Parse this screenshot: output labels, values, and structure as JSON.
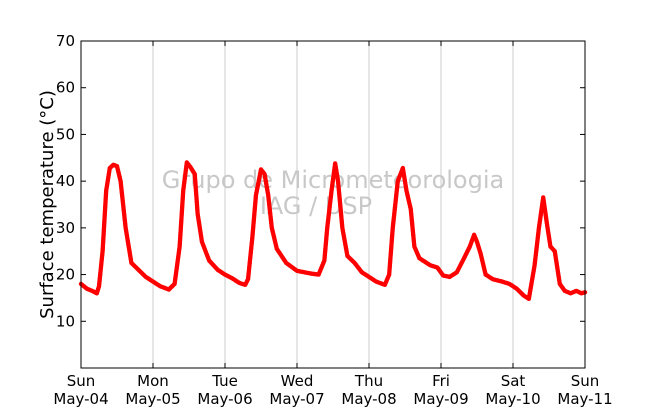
{
  "chart_data": {
    "type": "scatter",
    "title": "",
    "xlabel": "",
    "ylabel": "Surface temperature (°C)",
    "ylim": [
      0,
      70
    ],
    "yticks": [
      10,
      20,
      30,
      40,
      50,
      60,
      70
    ],
    "xlim": [
      0,
      7
    ],
    "xtick_labels": [
      {
        "day": "Sun",
        "date": "May-04"
      },
      {
        "day": "Mon",
        "date": "May-05"
      },
      {
        "day": "Tue",
        "date": "May-06"
      },
      {
        "day": "Wed",
        "date": "May-07"
      },
      {
        "day": "Thu",
        "date": "May-08"
      },
      {
        "day": "Fri",
        "date": "May-09"
      },
      {
        "day": "Sat",
        "date": "May-10"
      },
      {
        "day": "Sun",
        "date": "May-11"
      }
    ],
    "grid": "vertical",
    "marker_color": "#ff0000",
    "watermark": [
      "Grupo de Micrometeorologia",
      "IAG / USP"
    ],
    "series": [
      {
        "values": [
          [
            0.0,
            18.0
          ],
          [
            0.08,
            17.0
          ],
          [
            0.17,
            16.4
          ],
          [
            0.22,
            16.0
          ],
          [
            0.25,
            17.5
          ],
          [
            0.3,
            25.0
          ],
          [
            0.35,
            38.0
          ],
          [
            0.4,
            42.8
          ],
          [
            0.45,
            43.5
          ],
          [
            0.5,
            43.2
          ],
          [
            0.55,
            40.0
          ],
          [
            0.62,
            30.0
          ],
          [
            0.7,
            22.5
          ],
          [
            0.8,
            21.0
          ],
          [
            0.9,
            19.5
          ],
          [
            1.0,
            18.5
          ],
          [
            1.1,
            17.5
          ],
          [
            1.22,
            16.8
          ],
          [
            1.3,
            18.0
          ],
          [
            1.37,
            26.0
          ],
          [
            1.42,
            38.0
          ],
          [
            1.47,
            44.0
          ],
          [
            1.52,
            43.0
          ],
          [
            1.58,
            41.5
          ],
          [
            1.62,
            33.0
          ],
          [
            1.68,
            27.0
          ],
          [
            1.78,
            23.0
          ],
          [
            1.9,
            21.0
          ],
          [
            2.0,
            20.0
          ],
          [
            2.1,
            19.2
          ],
          [
            2.2,
            18.2
          ],
          [
            2.28,
            17.8
          ],
          [
            2.32,
            19.0
          ],
          [
            2.38,
            28.0
          ],
          [
            2.43,
            37.0
          ],
          [
            2.5,
            42.5
          ],
          [
            2.55,
            41.5
          ],
          [
            2.6,
            37.0
          ],
          [
            2.65,
            30.0
          ],
          [
            2.72,
            25.5
          ],
          [
            2.85,
            22.5
          ],
          [
            3.0,
            20.8
          ],
          [
            3.1,
            20.5
          ],
          [
            3.2,
            20.2
          ],
          [
            3.3,
            20.0
          ],
          [
            3.38,
            23.0
          ],
          [
            3.42,
            30.0
          ],
          [
            3.48,
            38.0
          ],
          [
            3.53,
            43.8
          ],
          [
            3.57,
            40.0
          ],
          [
            3.63,
            30.0
          ],
          [
            3.7,
            24.0
          ],
          [
            3.8,
            22.5
          ],
          [
            3.9,
            20.5
          ],
          [
            4.0,
            19.5
          ],
          [
            4.1,
            18.5
          ],
          [
            4.22,
            17.8
          ],
          [
            4.28,
            20.0
          ],
          [
            4.33,
            30.0
          ],
          [
            4.4,
            40.0
          ],
          [
            4.47,
            42.8
          ],
          [
            4.52,
            38.0
          ],
          [
            4.58,
            34.0
          ],
          [
            4.63,
            26.0
          ],
          [
            4.7,
            23.5
          ],
          [
            4.85,
            22.0
          ],
          [
            4.95,
            21.5
          ],
          [
            5.03,
            19.8
          ],
          [
            5.12,
            19.5
          ],
          [
            5.22,
            20.5
          ],
          [
            5.32,
            23.5
          ],
          [
            5.4,
            26.0
          ],
          [
            5.46,
            28.5
          ],
          [
            5.5,
            27.0
          ],
          [
            5.55,
            24.5
          ],
          [
            5.62,
            20.0
          ],
          [
            5.72,
            19.0
          ],
          [
            5.85,
            18.5
          ],
          [
            5.95,
            18.0
          ],
          [
            6.05,
            17.0
          ],
          [
            6.15,
            15.5
          ],
          [
            6.22,
            14.8
          ],
          [
            6.3,
            22.0
          ],
          [
            6.36,
            30.0
          ],
          [
            6.42,
            36.5
          ],
          [
            6.47,
            31.0
          ],
          [
            6.52,
            26.0
          ],
          [
            6.58,
            25.0
          ],
          [
            6.65,
            18.0
          ],
          [
            6.72,
            16.5
          ],
          [
            6.8,
            16.0
          ],
          [
            6.88,
            16.5
          ],
          [
            6.95,
            16.0
          ],
          [
            7.0,
            16.2
          ]
        ]
      }
    ]
  }
}
